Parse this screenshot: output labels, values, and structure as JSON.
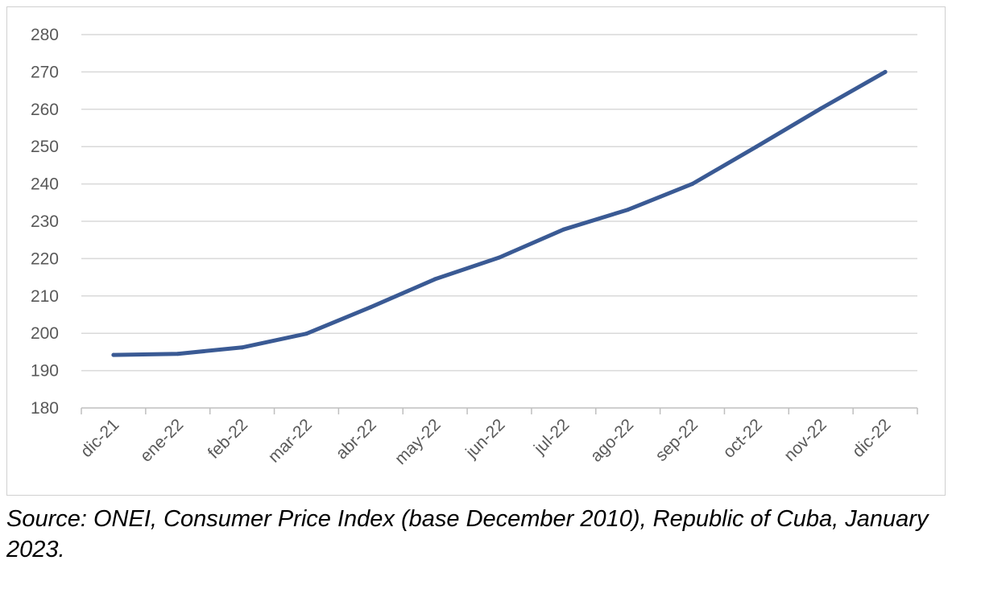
{
  "chart_data": {
    "type": "line",
    "categories": [
      "dic-21",
      "ene-22",
      "feb-22",
      "mar-22",
      "abr-22",
      "may-22",
      "jun-22",
      "jul-22",
      "ago-22",
      "sep-22",
      "oct-22",
      "nov-22",
      "dic-22"
    ],
    "series": [
      {
        "values": [
          194.2,
          194.5,
          196.2,
          199.9,
          207.0,
          214.5,
          220.3,
          227.8,
          233.1,
          240.0,
          250.0,
          260.2,
          270.0
        ]
      }
    ],
    "y_ticks": [
      "180",
      "190",
      "200",
      "210",
      "220",
      "230",
      "240",
      "250",
      "260",
      "270",
      "280"
    ],
    "ylim": [
      180,
      280
    ],
    "grid": true,
    "legend": "none",
    "colors": {
      "line": "#3a5a94",
      "grid": "#d9d9d9",
      "axis": "#bfbfbf",
      "tick_text": "#595959"
    }
  },
  "caption": "Source: ONEI, Consumer Price Index (base December 2010), Republic of Cuba, January 2023."
}
